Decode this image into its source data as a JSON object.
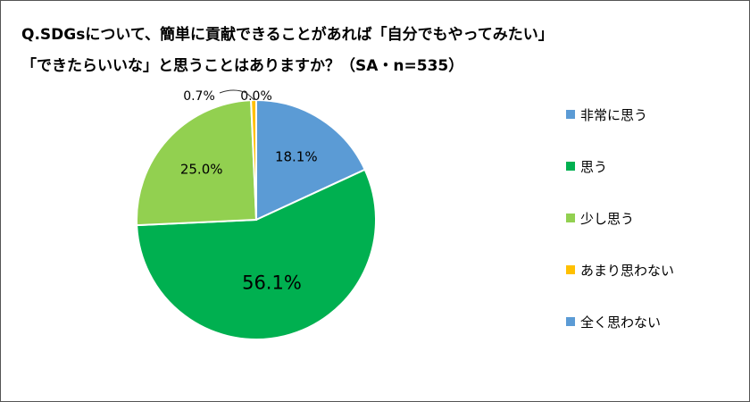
{
  "title_line1": "Q.SDGsについて、簡単に貢献できることがあれば「自分でもやってみたい」",
  "title_line2": "「できたらいいな」と思うことはありますか？（SA・n=535）",
  "chart_data": {
    "type": "pie",
    "title": "Q.SDGsについて、簡単に貢献できることがあれば「自分でもやってみたい」「できたらいいな」と思うことはありますか？（SA・n=535）",
    "unit": "%",
    "categories": [
      "非常に思う",
      "思う",
      "少し思う",
      "あまり思わない",
      "全く思わない"
    ],
    "values": [
      18.1,
      56.1,
      25.0,
      0.7,
      0.0
    ],
    "labels": [
      "18.1%",
      "56.1%",
      "25.0%",
      "0.7%",
      "0.0%"
    ],
    "colors": [
      "#5B9BD5",
      "#00B050",
      "#92D050",
      "#FFC000",
      "#5B9BD5"
    ],
    "start_angle_deg": 0,
    "direction": "clockwise",
    "legend_position": "right"
  }
}
